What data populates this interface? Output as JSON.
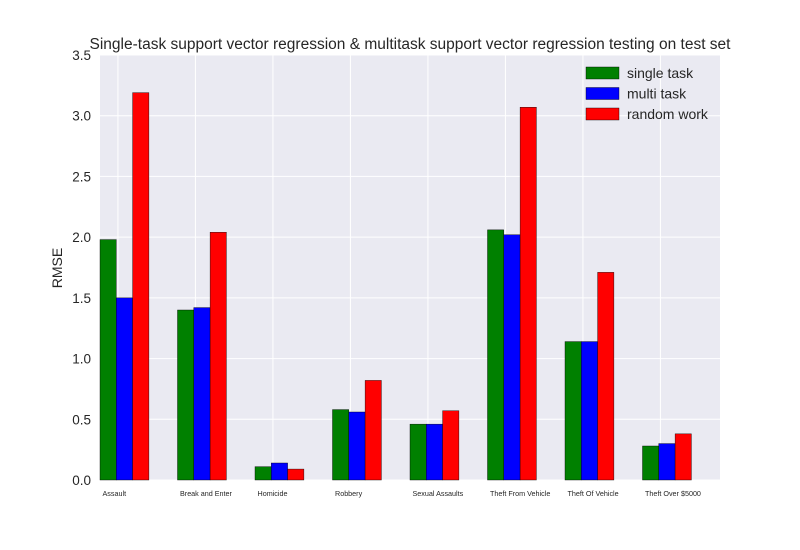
{
  "chart_data": {
    "type": "bar",
    "title": "Single-task support vector regression & multitask support vector regression testing on test set",
    "xlabel": "",
    "ylabel": "RMSE",
    "ylim": [
      0,
      3.5
    ],
    "yticks": [
      0.0,
      0.5,
      1.0,
      1.5,
      2.0,
      2.5,
      3.0,
      3.5
    ],
    "ytick_labels": [
      "0.0",
      "0.5",
      "1.0",
      "1.5",
      "2.0",
      "2.5",
      "3.0",
      "3.5"
    ],
    "categories": [
      "Assault",
      "Break and Enter",
      "Homicide",
      "Robbery",
      "Sexual Assaults",
      "Theft From Vehicle",
      "Theft Of Vehicle",
      "Theft Over $5000"
    ],
    "series": [
      {
        "name": "single task",
        "color": "#008000",
        "values": [
          1.98,
          1.4,
          0.11,
          0.58,
          0.46,
          2.06,
          1.14,
          0.28
        ]
      },
      {
        "name": "multi task",
        "color": "#0000ff",
        "values": [
          1.5,
          1.42,
          0.14,
          0.56,
          0.46,
          2.02,
          1.14,
          0.3
        ]
      },
      {
        "name": "random work",
        "color": "#ff0000",
        "values": [
          3.19,
          2.04,
          0.09,
          0.82,
          0.57,
          3.07,
          1.71,
          0.38
        ]
      }
    ],
    "grid": true,
    "background": "#eaeaf2",
    "legend_position": "top-right"
  }
}
